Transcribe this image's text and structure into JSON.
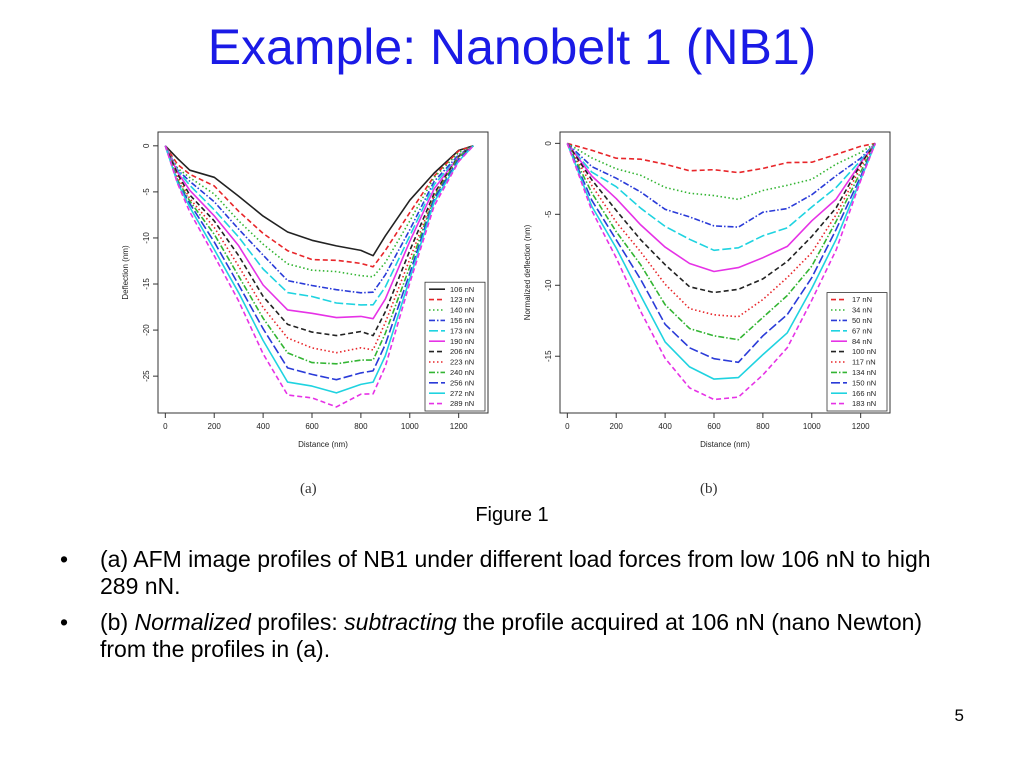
{
  "slide": {
    "title": "Example: Nanobelt 1 (NB1)",
    "caption": "Figure 1",
    "page_number": "5",
    "panel_a_tag": "(a)",
    "panel_b_tag": "(b)",
    "bullets": [
      {
        "marker": "•",
        "parts": [
          {
            "text": "(a) AFM image profiles of NB1 under different load forces from low 106 nN to high 289 nN.",
            "italic": false
          }
        ]
      },
      {
        "marker": "•",
        "parts": [
          {
            "text": "(b) ",
            "italic": false
          },
          {
            "text": "Normalized",
            "italic": true
          },
          {
            "text": " profiles: ",
            "italic": false
          },
          {
            "text": "subtracting",
            "italic": true
          },
          {
            "text": " the profile acquired at 106 nN (nano Newton) from the profiles in (a).",
            "italic": false
          }
        ]
      }
    ]
  },
  "chart_data": [
    {
      "type": "line",
      "panel": "(a)",
      "xlabel": "Distance (nm)",
      "ylabel": "Deflection (nm)",
      "xlim": [
        -30,
        1320
      ],
      "ylim": [
        -29,
        1.5
      ],
      "xticks": [
        0,
        200,
        400,
        600,
        800,
        1000,
        1200
      ],
      "yticks": [
        0,
        -5,
        -10,
        -15,
        -20,
        -25
      ],
      "legend_position": "bottom-right",
      "x": [
        0,
        50,
        100,
        200,
        300,
        400,
        500,
        600,
        700,
        800,
        850,
        900,
        1000,
        1100,
        1200,
        1260
      ],
      "series": [
        {
          "name": "106 nN",
          "color": "#222222",
          "dash": "solid",
          "values": [
            0,
            -1.5,
            -2.5,
            -3.5,
            -5.5,
            -7.5,
            -9.5,
            -10.2,
            -10.8,
            -11.5,
            -11.8,
            -9.8,
            -6.0,
            -2.8,
            -0.6,
            0
          ]
        },
        {
          "name": "123 nN",
          "color": "#e8262a",
          "dash": "dash",
          "values": [
            0,
            -2.0,
            -3.0,
            -4.5,
            -7.0,
            -9.5,
            -11.5,
            -12.2,
            -12.5,
            -12.8,
            -13.0,
            -11.5,
            -7.2,
            -3.2,
            -0.7,
            0
          ]
        },
        {
          "name": "140 nN",
          "color": "#33b533",
          "dash": "dot",
          "values": [
            0,
            -2.3,
            -3.5,
            -5.3,
            -8.0,
            -10.8,
            -12.8,
            -13.4,
            -13.8,
            -14.0,
            -14.2,
            -12.8,
            -8.0,
            -3.5,
            -0.8,
            0
          ]
        },
        {
          "name": "156 nN",
          "color": "#2a3bd8",
          "dash": "dashdot",
          "values": [
            0,
            -2.5,
            -4.0,
            -6.0,
            -9.0,
            -12.0,
            -14.5,
            -15.2,
            -15.7,
            -15.8,
            -16.0,
            -14.0,
            -9.0,
            -4.0,
            -0.9,
            0
          ]
        },
        {
          "name": "173 nN",
          "color": "#1fd3e0",
          "dash": "longdash",
          "values": [
            0,
            -2.7,
            -4.4,
            -6.8,
            -10.0,
            -13.4,
            -15.8,
            -16.5,
            -17.0,
            -17.2,
            -17.4,
            -15.2,
            -9.8,
            -4.3,
            -1.0,
            0
          ]
        },
        {
          "name": "190 nN",
          "color": "#e632e6",
          "dash": "solid",
          "values": [
            0,
            -3.0,
            -4.8,
            -7.5,
            -11.0,
            -15.0,
            -17.8,
            -18.3,
            -18.5,
            -18.6,
            -18.8,
            -16.5,
            -10.5,
            -4.6,
            -1.1,
            0
          ]
        },
        {
          "name": "206 nN",
          "color": "#222222",
          "dash": "dash",
          "values": [
            0,
            -3.2,
            -5.2,
            -8.2,
            -12.0,
            -16.2,
            -19.5,
            -20.2,
            -20.5,
            -20.3,
            -20.5,
            -18.0,
            -11.5,
            -5.0,
            -1.2,
            0
          ]
        },
        {
          "name": "223 nN",
          "color": "#e8262a",
          "dash": "dot",
          "values": [
            0,
            -3.4,
            -5.6,
            -9.0,
            -13.0,
            -17.5,
            -21.0,
            -21.8,
            -22.5,
            -22.0,
            -22.0,
            -19.3,
            -12.3,
            -5.3,
            -1.3,
            0
          ]
        },
        {
          "name": "240 nN",
          "color": "#33b533",
          "dash": "dashdot",
          "values": [
            0,
            -3.6,
            -6.0,
            -9.7,
            -14.0,
            -18.8,
            -22.5,
            -23.4,
            -23.8,
            -23.2,
            -23.2,
            -20.5,
            -13.0,
            -5.6,
            -1.3,
            0
          ]
        },
        {
          "name": "256 nN",
          "color": "#2a3bd8",
          "dash": "longdash",
          "values": [
            0,
            -3.8,
            -6.4,
            -10.4,
            -15.0,
            -20.0,
            -24.0,
            -24.8,
            -25.5,
            -24.5,
            -24.5,
            -21.6,
            -13.7,
            -5.9,
            -1.4,
            0
          ]
        },
        {
          "name": "272 nN",
          "color": "#1fd3e0",
          "dash": "solid",
          "values": [
            0,
            -4.0,
            -6.8,
            -11.1,
            -16.0,
            -21.2,
            -25.5,
            -26.2,
            -26.8,
            -25.8,
            -25.8,
            -22.7,
            -14.4,
            -6.2,
            -1.5,
            0
          ]
        },
        {
          "name": "289 nN",
          "color": "#e632e6",
          "dash": "dash",
          "values": [
            0,
            -4.2,
            -7.2,
            -11.8,
            -17.0,
            -22.5,
            -27.0,
            -27.5,
            -28.2,
            -27.0,
            -27.0,
            -23.8,
            -15.0,
            -6.5,
            -1.6,
            0
          ]
        }
      ]
    },
    {
      "type": "line",
      "panel": "(b)",
      "xlabel": "Distance (nm)",
      "ylabel": "Normalized deflection (nm)",
      "xlim": [
        -30,
        1320
      ],
      "ylim": [
        -19,
        0.8
      ],
      "xticks": [
        0,
        200,
        400,
        600,
        800,
        1000,
        1200
      ],
      "yticks": [
        0,
        -5,
        -10,
        -15
      ],
      "legend_position": "bottom-right",
      "x": [
        0,
        100,
        200,
        300,
        400,
        500,
        600,
        700,
        800,
        900,
        1000,
        1100,
        1200,
        1260
      ],
      "series": [
        {
          "name": "17 nN",
          "color": "#e8262a",
          "dash": "dash",
          "values": [
            0,
            -0.6,
            -0.9,
            -1.2,
            -1.5,
            -1.8,
            -2.0,
            -2.0,
            -1.7,
            -1.5,
            -1.2,
            -0.8,
            -0.3,
            0
          ]
        },
        {
          "name": "34 nN",
          "color": "#33b533",
          "dash": "dot",
          "values": [
            0,
            -1.0,
            -1.7,
            -2.4,
            -3.0,
            -3.5,
            -3.8,
            -3.8,
            -3.4,
            -3.0,
            -2.4,
            -1.6,
            -0.6,
            0
          ]
        },
        {
          "name": "50 nN",
          "color": "#2a3bd8",
          "dash": "dashdot",
          "values": [
            0,
            -1.5,
            -2.5,
            -3.5,
            -4.5,
            -5.3,
            -5.8,
            -5.8,
            -5.0,
            -4.5,
            -3.6,
            -2.4,
            -0.9,
            0
          ]
        },
        {
          "name": "67 nN",
          "color": "#1fd3e0",
          "dash": "longdash",
          "values": [
            0,
            -1.9,
            -3.2,
            -4.5,
            -5.8,
            -6.9,
            -7.4,
            -7.4,
            -6.6,
            -5.8,
            -4.6,
            -3.1,
            -1.1,
            0
          ]
        },
        {
          "name": "84 nN",
          "color": "#e632e6",
          "dash": "solid",
          "values": [
            0,
            -2.3,
            -4.0,
            -5.6,
            -7.4,
            -8.5,
            -8.9,
            -8.9,
            -8.0,
            -7.2,
            -5.6,
            -3.8,
            -1.4,
            0
          ]
        },
        {
          "name": "100 nN",
          "color": "#222222",
          "dash": "dash",
          "values": [
            0,
            -2.7,
            -4.7,
            -6.7,
            -8.7,
            -10.0,
            -10.5,
            -10.4,
            -9.4,
            -8.4,
            -6.6,
            -4.4,
            -1.6,
            0
          ]
        },
        {
          "name": "117 nN",
          "color": "#e8262a",
          "dash": "dot",
          "values": [
            0,
            -3.1,
            -5.4,
            -7.7,
            -10.0,
            -11.5,
            -12.2,
            -12.2,
            -10.9,
            -9.6,
            -7.6,
            -5.0,
            -1.8,
            0
          ]
        },
        {
          "name": "134 nN",
          "color": "#33b533",
          "dash": "dashdot",
          "values": [
            0,
            -3.5,
            -6.1,
            -8.7,
            -11.3,
            -13.0,
            -13.7,
            -13.7,
            -12.3,
            -10.8,
            -8.5,
            -5.6,
            -2.0,
            0
          ]
        },
        {
          "name": "150 nN",
          "color": "#2a3bd8",
          "dash": "longdash",
          "values": [
            0,
            -3.9,
            -6.8,
            -9.7,
            -12.6,
            -14.5,
            -15.2,
            -15.3,
            -13.7,
            -12.0,
            -9.4,
            -6.2,
            -2.2,
            0
          ]
        },
        {
          "name": "166 nN",
          "color": "#1fd3e0",
          "dash": "solid",
          "values": [
            0,
            -4.3,
            -7.5,
            -10.7,
            -13.9,
            -15.9,
            -16.5,
            -16.5,
            -15.0,
            -13.2,
            -10.3,
            -6.8,
            -2.4,
            0
          ]
        },
        {
          "name": "183 nN",
          "color": "#e632e6",
          "dash": "dash",
          "values": [
            0,
            -4.7,
            -8.2,
            -11.7,
            -15.2,
            -17.3,
            -17.9,
            -18.0,
            -16.3,
            -14.3,
            -11.2,
            -7.4,
            -2.6,
            0
          ]
        }
      ]
    }
  ]
}
